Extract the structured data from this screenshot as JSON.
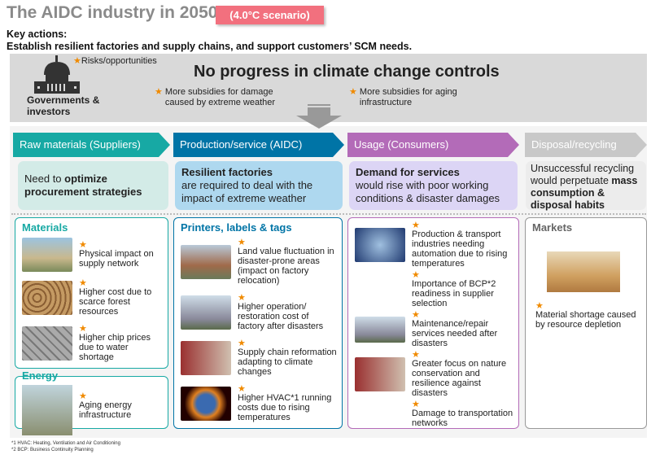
{
  "header": {
    "title": "The AIDC industry in 2050",
    "scenario": "(4.0°C scenario)",
    "key_label": "Key actions:",
    "key_text": "Establish resilient factories and supply chains, and support customers’ SCM needs."
  },
  "band": {
    "actor": "Governments & investors",
    "legend": "Risks/opportunities",
    "headline": "No progress in climate change controls",
    "points": [
      "More subsidies for damage caused by extreme weather",
      "More subsidies for aging infrastructure"
    ]
  },
  "colors": {
    "raw": "#17a9a4",
    "production": "#0074a6",
    "usage": "#b36bb8",
    "disposal": "#c8c8c8",
    "star": "#f08a00"
  },
  "stages": [
    {
      "label": "Raw materials (Suppliers)",
      "desc_pre": "Need to ",
      "desc_bold": "optimize procurement strategies",
      "desc_post": ""
    },
    {
      "label": "Production/service (AIDC)",
      "desc_bold": "Resilient factories",
      "desc_post": "are required to deal with the impact of extreme weather"
    },
    {
      "label": "Usage (Consumers)",
      "desc_bold": "Demand for services",
      "desc_post": "would rise with poor working conditions & disaster damages"
    },
    {
      "label": "Disposal/recycling",
      "desc_pre": "Unsuccessful recycling would perpetuate ",
      "desc_bold": "mass consumption & disposal habits"
    }
  ],
  "materials": {
    "title": "Materials",
    "items": [
      "Physical impact on supply network",
      "Higher cost due to scarce forest resources",
      "Higher chip prices due to water shortage"
    ]
  },
  "energy": {
    "title": "Energy",
    "items": [
      "Aging energy infrastructure"
    ]
  },
  "printers": {
    "title": "Printers, labels & tags",
    "items": [
      "Land value fluctuation in disaster-prone areas (impact on factory relocation)",
      "Higher operation/ restoration cost of factory after disasters",
      "Supply chain reformation adapting to climate changes",
      "Higher HVAC*1 running costs due to rising temperatures"
    ]
  },
  "usage": {
    "items": [
      "Production & transport industries needing automation due to rising temperatures",
      "Importance of BCP*2 readiness in supplier selection",
      "Maintenance/repair services needed after disasters",
      "Greater focus on nature conservation and resilience against disasters",
      "Damage to transportation networks"
    ]
  },
  "markets": {
    "title": "Markets",
    "items": [
      "Material shortage caused by resource depletion"
    ]
  },
  "footnotes": [
    "*1 HVAC: Heating, Ventilation and Air Conditioning",
    "*2 BCP: Business Continuity Planning"
  ]
}
